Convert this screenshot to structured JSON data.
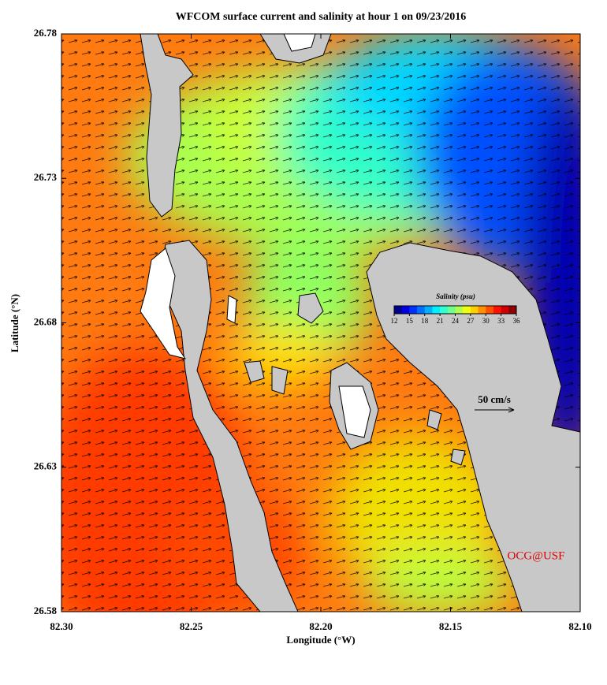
{
  "chart_data": {
    "type": "map",
    "title": "WFCOM surface current and salinity at hour 1 on 09/23/2016",
    "x_label": "Longitude (°W)",
    "y_label": "Latitude (°N)",
    "xlim": [
      82.3,
      82.1
    ],
    "ylim": [
      26.58,
      26.78
    ],
    "xticks": [
      {
        "value": 82.3,
        "label": "82.30"
      },
      82.25,
      {
        "value": 82.2,
        "label": "82.20"
      },
      82.15,
      {
        "value": 82.1,
        "label": "82.10"
      }
    ],
    "yticks": [
      26.58,
      26.63,
      26.68,
      26.73,
      26.78
    ],
    "colorbar": {
      "title": "Salinity (psu)",
      "lim": [
        12,
        36
      ],
      "ticks": [
        12,
        15,
        18,
        21,
        24,
        27,
        30,
        33,
        36
      ],
      "colors": [
        "#00008f",
        "#0000df",
        "#0030ff",
        "#0070ff",
        "#00b0ff",
        "#00efff",
        "#30ffcf",
        "#70ff8f",
        "#b0ff50",
        "#efff10",
        "#ffcf00",
        "#ff9000",
        "#ff5000",
        "#ff1000",
        "#cf0000",
        "#8f0000"
      ]
    },
    "scale_label": "50 cm/s",
    "credit": "OCG@USF"
  }
}
